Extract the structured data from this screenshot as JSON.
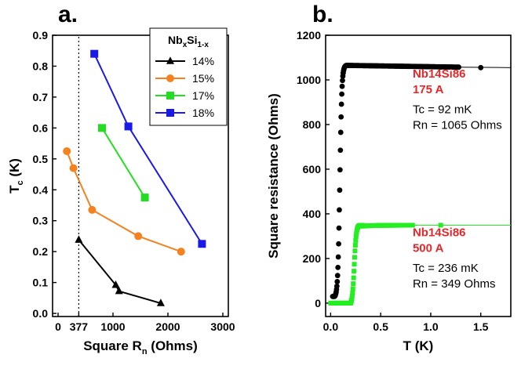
{
  "chart_data": [
    {
      "type": "line",
      "panel_label": "a.",
      "xlabel_main": "Square R",
      "xlabel_sub": "n",
      "xlabel_unit": " (Ohms)",
      "ylabel_main": "T",
      "ylabel_sub": "c",
      "ylabel_unit": " (K)",
      "xlim": [
        -100,
        3100
      ],
      "ylim": [
        -0.01,
        0.9
      ],
      "x_ticks": [
        {
          "value": 0,
          "label": "0"
        },
        {
          "value": 377,
          "label": "377"
        },
        {
          "value": 1000,
          "label": "1000"
        },
        {
          "value": 2000,
          "label": "2000"
        },
        {
          "value": 3000,
          "label": "3000"
        }
      ],
      "y_ticks": [
        {
          "value": 0.0,
          "label": "0.0"
        },
        {
          "value": 0.1,
          "label": "0.1"
        },
        {
          "value": 0.2,
          "label": "0.2"
        },
        {
          "value": 0.3,
          "label": "0.3"
        },
        {
          "value": 0.4,
          "label": "0.4"
        },
        {
          "value": 0.5,
          "label": "0.5"
        },
        {
          "value": 0.6,
          "label": "0.6"
        },
        {
          "value": 0.7,
          "label": "0.7"
        },
        {
          "value": 0.8,
          "label": "0.8"
        },
        {
          "value": 0.9,
          "label": "0.9"
        }
      ],
      "reference_line_x": 377,
      "legend_title_parts": [
        "Nb",
        "x",
        "Si",
        "1-x"
      ],
      "legend_position": "top-right",
      "series": [
        {
          "name": "14%",
          "color": "#000000",
          "marker": "triangle",
          "points": [
            [
              377,
              0.238
            ],
            [
              1050,
              0.092
            ],
            [
              1110,
              0.072
            ],
            [
              1870,
              0.033
            ]
          ]
        },
        {
          "name": "15%",
          "color": "#f5821f",
          "marker": "circle",
          "points": [
            [
              160,
              0.525
            ],
            [
              280,
              0.47
            ],
            [
              620,
              0.335
            ],
            [
              1460,
              0.25
            ],
            [
              2240,
              0.2
            ]
          ]
        },
        {
          "name": "17%",
          "color": "#22dd22",
          "marker": "square",
          "points": [
            [
              800,
              0.6
            ],
            [
              1580,
              0.375
            ]
          ]
        },
        {
          "name": "18%",
          "color": "#1a1ae6",
          "marker": "square",
          "points": [
            [
              660,
              0.84
            ],
            [
              1280,
              0.605
            ],
            [
              2620,
              0.225
            ]
          ]
        }
      ]
    },
    {
      "type": "scatter",
      "panel_label": "b.",
      "xlabel": "T (K)",
      "ylabel": "Square resistance (Ohms)",
      "xlim": [
        -0.05,
        1.8
      ],
      "ylim": [
        -60,
        1200
      ],
      "x_ticks": [
        {
          "value": 0.0,
          "label": "0.0"
        },
        {
          "value": 0.5,
          "label": "0.5"
        },
        {
          "value": 1.0,
          "label": "1.0"
        },
        {
          "value": 1.5,
          "label": "1.5"
        }
      ],
      "y_ticks": [
        {
          "value": 0,
          "label": "0"
        },
        {
          "value": 200,
          "label": "200"
        },
        {
          "value": 400,
          "label": "400"
        },
        {
          "value": 600,
          "label": "600"
        },
        {
          "value": 800,
          "label": "800"
        },
        {
          "value": 1000,
          "label": "1000"
        },
        {
          "value": 1200,
          "label": "1200"
        }
      ],
      "series": [
        {
          "name": "Nb14Si86 175 A",
          "color": "#000000",
          "marker": "circle",
          "transition": {
            "t_start": 0.02,
            "t_onset": 0.04,
            "t_mid": 0.092,
            "t_sat": 0.16,
            "r_low": 30,
            "r_high": 1065
          },
          "sparse_points": [
            [
              1.1,
              1058
            ],
            [
              1.5,
              1055
            ]
          ],
          "line_end_t": 1.8
        },
        {
          "name": "Nb14Si86 500 A",
          "color": "#22ee22",
          "marker": "square",
          "transition": {
            "t_start": 0.0,
            "t_onset": 0.2,
            "t_mid": 0.236,
            "t_sat": 0.32,
            "r_low": 0,
            "r_high": 349
          },
          "sparse_points": [
            [
              1.1,
              349
            ]
          ],
          "line_end_t": 1.8
        }
      ],
      "annotations": [
        {
          "lines": [
            "Nb14Si86",
            "175 A"
          ],
          "style": "red",
          "x": 0.82,
          "y": 1010
        },
        {
          "lines": [
            "Tc = 92 mK",
            "Rn = 1065 Ohms"
          ],
          "style": "black",
          "x": 0.82,
          "y": 850
        },
        {
          "lines": [
            "Nb14Si86",
            "500 A"
          ],
          "style": "red",
          "x": 0.82,
          "y": 300
        },
        {
          "lines": [
            "Tc = 236 mK",
            "Rn = 349 Ohms"
          ],
          "style": "black",
          "x": 0.82,
          "y": 140
        }
      ]
    }
  ]
}
